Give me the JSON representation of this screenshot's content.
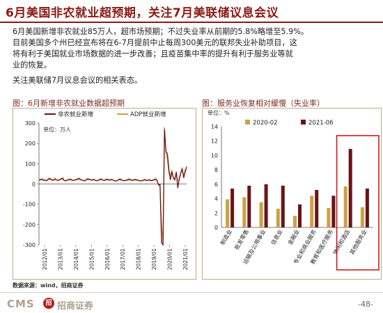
{
  "header": {
    "title": "6月美国非农就业超预期，关注7月美联储议息会议"
  },
  "body": {
    "lines": [
      "6月美国新增非农就业85万人，超市场预期；不过失业率从前期的5.8%略增至5.9%。",
      "目前美国多个州已经宣布将在6-7月提前中止每周300美元的联邦失业补助项目，这",
      "将有利于美国就业市场数据的进一步改善；且疫苗集中率的提升有利于服务业等就",
      "业的恢复。"
    ],
    "line2": "关注美联储7月议息会议的相关表态。"
  },
  "chart1": {
    "title": "图：6月新增非农就业数据超预期",
    "unit": "单位：万人"
  },
  "chart2": {
    "title": "图：服务业恢复相对缓慢（失业率）",
    "unit": "单位：%"
  },
  "chart_data": [
    {
      "type": "line",
      "series": [
        {
          "name": "非农就业新增",
          "color": "#6b1414",
          "values": [
            20,
            22,
            25,
            18,
            20,
            15,
            22,
            28,
            24,
            19,
            21,
            26,
            20,
            18,
            23,
            25,
            30,
            18,
            15,
            20,
            22,
            24,
            21,
            17,
            19,
            22,
            25,
            28,
            23,
            20,
            18,
            15,
            22,
            26,
            24,
            21,
            20,
            23,
            19,
            16,
            18,
            22,
            25,
            20,
            17,
            21,
            24,
            22,
            19,
            23,
            20,
            16,
            14,
            18,
            22,
            25,
            20,
            17,
            16,
            19,
            21,
            24,
            22,
            18,
            20,
            23,
            21,
            19,
            17,
            15,
            18,
            20,
            22,
            17,
            20,
            21,
            16,
            19,
            22,
            25,
            18,
            -5,
            -2,
            -290,
            -300,
            270,
            160,
            150,
            70,
            20,
            60,
            30,
            20,
            60,
            -20,
            25,
            55,
            75,
            30,
            60,
            85
          ]
        },
        {
          "name": "ADP就业新增",
          "color": "#c9a148",
          "values": [
            18,
            19,
            20,
            21,
            19,
            17,
            20,
            22,
            21,
            18,
            19,
            20,
            19,
            17,
            20,
            21,
            22,
            18,
            16,
            18,
            19,
            20,
            19,
            17,
            18,
            20,
            21,
            22,
            20,
            19,
            17,
            16,
            19,
            21,
            20,
            19,
            18,
            20,
            18,
            16,
            17,
            19,
            21,
            19,
            17,
            18,
            20,
            19,
            18,
            20,
            19,
            16,
            15,
            17,
            19,
            20,
            18,
            16,
            16,
            17,
            18,
            20,
            19,
            17,
            18,
            19,
            18,
            17,
            16,
            15,
            16,
            18,
            19,
            16,
            17,
            18,
            15,
            17,
            19,
            20,
            16,
            -3,
            -10,
            -200,
            -290,
            280,
            150,
            120,
            50,
            40,
            70,
            30,
            30,
            50,
            17,
            20,
            50,
            70,
            40,
            70,
            65
          ]
        }
      ],
      "x_tick_labels": [
        "2012/01",
        "2013/01",
        "2014/01",
        "2015/01",
        "2016/01",
        "2017/01",
        "2018/01",
        "2019/01",
        "2020/01",
        "2021/01"
      ],
      "y_tick_labels": [
        "300",
        "200",
        "100",
        "0",
        "-100",
        "-200",
        "-300"
      ],
      "ylim": [
        -300,
        300
      ],
      "grid": false,
      "legend": "top"
    },
    {
      "type": "bar",
      "categories": [
        "制造业",
        "批发零售",
        "运输及公用事业",
        "信息业",
        "金融业",
        "专业和商业服务",
        "教育和医疗服务",
        "休闲和酒店",
        "其他服务业"
      ],
      "series": [
        {
          "name": "2020-02",
          "color": "#c9a148",
          "values": [
            3.9,
            4.2,
            3.5,
            2.6,
            1.6,
            4.4,
            2.7,
            5.7,
            2.8
          ]
        },
        {
          "name": "2021-06",
          "color": "#6b1414",
          "values": [
            5.4,
            5.8,
            6.0,
            5.8,
            3.2,
            5.2,
            4.4,
            10.9,
            5.4
          ]
        }
      ],
      "y_tick_labels": [
        "0",
        "2",
        "4",
        "6",
        "8",
        "10",
        "12",
        "14"
      ],
      "ylim": [
        0,
        14
      ],
      "legend": "top",
      "highlight_categories": [
        "休闲和酒店",
        "其他服务业"
      ]
    }
  ],
  "footer": {
    "source": "数据来源：wind，招商证券",
    "brand_latin": "CMS",
    "brand_mark": "招",
    "brand_name": "招商证券",
    "page": "-48-"
  }
}
